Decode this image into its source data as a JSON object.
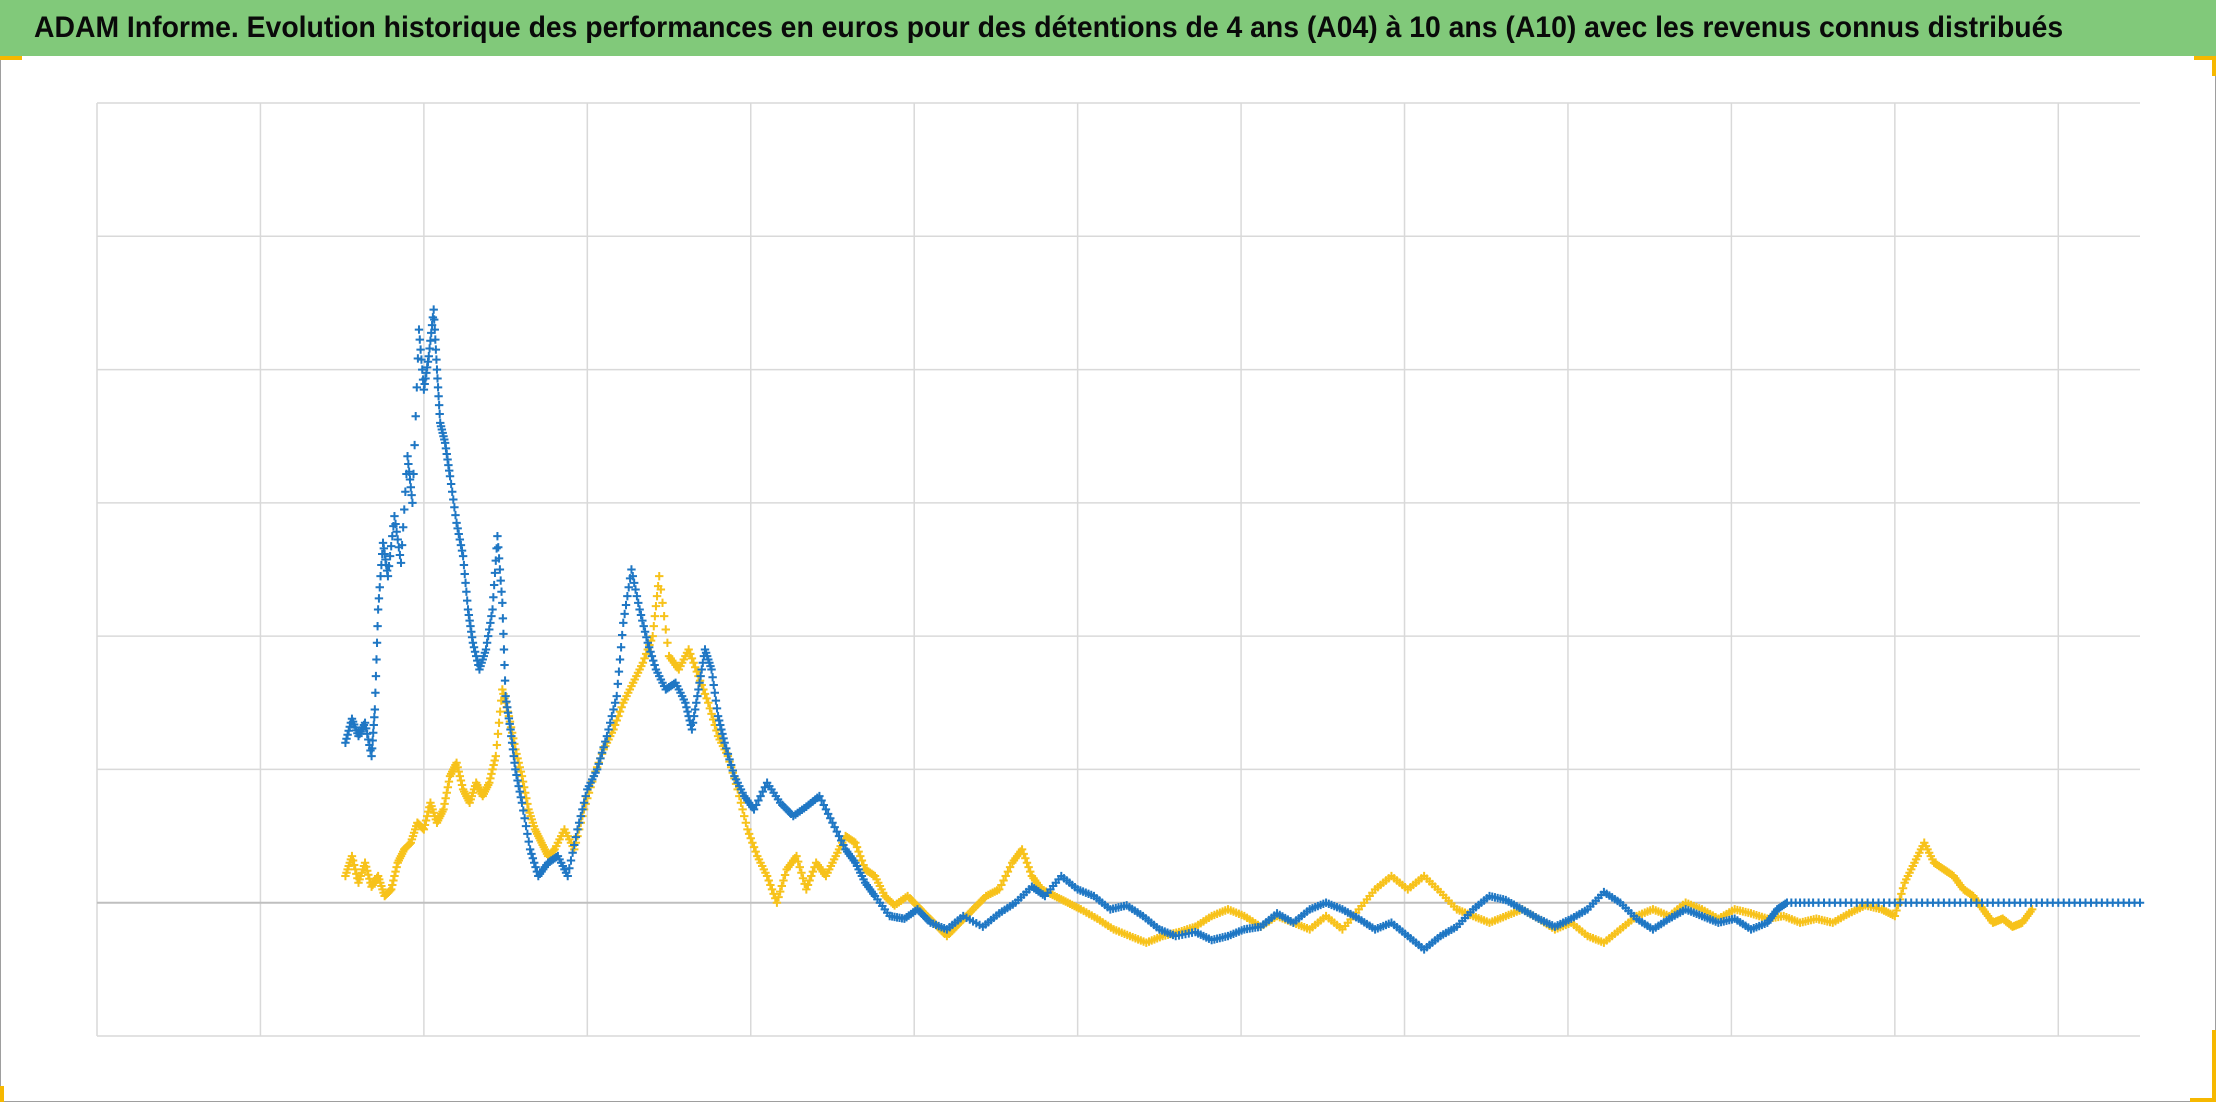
{
  "title": "ADAM Informe. Evolution historique des performances en euros pour des détentions de 4 ans (A04) à 10 ans (A10) avec les revenus connus distribués",
  "colors": {
    "title_bar": "#81c97a",
    "series_blue": "#1f77c4",
    "series_yellow": "#f7c21b",
    "grid": "#d9d9d9",
    "frame_corner": "#f6b800"
  },
  "chart_data": {
    "type": "scatter",
    "marker": "plus",
    "title": "",
    "xlabel": "",
    "ylabel": "",
    "xlim": [
      0,
      12.5
    ],
    "ylim": [
      -1,
      6
    ],
    "x_gridlines": [
      1,
      2,
      3,
      4,
      5,
      6,
      7,
      8,
      9,
      10,
      11,
      12
    ],
    "y_gridlines": [
      -1,
      1,
      2,
      3,
      4,
      5,
      6
    ],
    "baseline_y": 0,
    "grid": true,
    "legend": "none",
    "series": [
      {
        "color": "#1f77c4",
        "points": [
          [
            1.52,
            1.2
          ],
          [
            1.56,
            1.38
          ],
          [
            1.6,
            1.25
          ],
          [
            1.64,
            1.35
          ],
          [
            1.68,
            1.1
          ],
          [
            1.7,
            1.45
          ],
          [
            1.72,
            2.2
          ],
          [
            1.75,
            2.7
          ],
          [
            1.78,
            2.45
          ],
          [
            1.82,
            2.9
          ],
          [
            1.86,
            2.55
          ],
          [
            1.9,
            3.35
          ],
          [
            1.93,
            3.0
          ],
          [
            1.97,
            4.3
          ],
          [
            2.0,
            3.85
          ],
          [
            2.03,
            4.1
          ],
          [
            2.06,
            4.45
          ],
          [
            2.08,
            4.0
          ],
          [
            2.1,
            3.6
          ],
          [
            2.13,
            3.45
          ],
          [
            2.16,
            3.2
          ],
          [
            2.2,
            2.85
          ],
          [
            2.24,
            2.6
          ],
          [
            2.27,
            2.2
          ],
          [
            2.3,
            1.95
          ],
          [
            2.34,
            1.75
          ],
          [
            2.38,
            1.9
          ],
          [
            2.42,
            2.2
          ],
          [
            2.45,
            2.75
          ],
          [
            2.48,
            2.25
          ],
          [
            2.5,
            1.55
          ],
          [
            2.53,
            1.3
          ],
          [
            2.56,
            1.0
          ],
          [
            2.6,
            0.75
          ],
          [
            2.65,
            0.4
          ],
          [
            2.7,
            0.2
          ],
          [
            2.76,
            0.3
          ],
          [
            2.82,
            0.35
          ],
          [
            2.88,
            0.2
          ],
          [
            2.94,
            0.55
          ],
          [
            3.0,
            0.85
          ],
          [
            3.06,
            1.0
          ],
          [
            3.12,
            1.25
          ],
          [
            3.18,
            1.55
          ],
          [
            3.22,
            2.1
          ],
          [
            3.27,
            2.5
          ],
          [
            3.32,
            2.2
          ],
          [
            3.37,
            1.95
          ],
          [
            3.42,
            1.75
          ],
          [
            3.48,
            1.6
          ],
          [
            3.54,
            1.65
          ],
          [
            3.6,
            1.5
          ],
          [
            3.64,
            1.3
          ],
          [
            3.68,
            1.6
          ],
          [
            3.72,
            1.9
          ],
          [
            3.76,
            1.75
          ],
          [
            3.8,
            1.4
          ],
          [
            3.84,
            1.2
          ],
          [
            3.9,
            0.95
          ],
          [
            3.96,
            0.8
          ],
          [
            4.02,
            0.7
          ],
          [
            4.1,
            0.9
          ],
          [
            4.18,
            0.75
          ],
          [
            4.26,
            0.65
          ],
          [
            4.34,
            0.72
          ],
          [
            4.42,
            0.8
          ],
          [
            4.5,
            0.6
          ],
          [
            4.58,
            0.4
          ],
          [
            4.64,
            0.3
          ],
          [
            4.7,
            0.15
          ],
          [
            4.76,
            0.05
          ],
          [
            4.85,
            -0.1
          ],
          [
            4.94,
            -0.12
          ],
          [
            5.02,
            -0.05
          ],
          [
            5.1,
            -0.15
          ],
          [
            5.2,
            -0.2
          ],
          [
            5.3,
            -0.1
          ],
          [
            5.42,
            -0.18
          ],
          [
            5.52,
            -0.08
          ],
          [
            5.62,
            0.0
          ],
          [
            5.72,
            0.12
          ],
          [
            5.8,
            0.05
          ],
          [
            5.9,
            0.2
          ],
          [
            6.0,
            0.1
          ],
          [
            6.1,
            0.05
          ],
          [
            6.2,
            -0.05
          ],
          [
            6.3,
            -0.02
          ],
          [
            6.4,
            -0.1
          ],
          [
            6.5,
            -0.2
          ],
          [
            6.6,
            -0.25
          ],
          [
            6.72,
            -0.22
          ],
          [
            6.82,
            -0.28
          ],
          [
            6.92,
            -0.25
          ],
          [
            7.02,
            -0.2
          ],
          [
            7.12,
            -0.18
          ],
          [
            7.22,
            -0.08
          ],
          [
            7.32,
            -0.15
          ],
          [
            7.42,
            -0.05
          ],
          [
            7.52,
            0.0
          ],
          [
            7.62,
            -0.05
          ],
          [
            7.72,
            -0.12
          ],
          [
            7.82,
            -0.2
          ],
          [
            7.92,
            -0.15
          ],
          [
            8.02,
            -0.25
          ],
          [
            8.12,
            -0.35
          ],
          [
            8.22,
            -0.25
          ],
          [
            8.32,
            -0.18
          ],
          [
            8.42,
            -0.05
          ],
          [
            8.52,
            0.05
          ],
          [
            8.62,
            0.02
          ],
          [
            8.72,
            -0.05
          ],
          [
            8.82,
            -0.12
          ],
          [
            8.92,
            -0.18
          ],
          [
            9.02,
            -0.12
          ],
          [
            9.12,
            -0.05
          ],
          [
            9.22,
            0.08
          ],
          [
            9.32,
            0.0
          ],
          [
            9.42,
            -0.12
          ],
          [
            9.52,
            -0.2
          ],
          [
            9.62,
            -0.12
          ],
          [
            9.72,
            -0.05
          ],
          [
            9.82,
            -0.1
          ],
          [
            9.92,
            -0.15
          ],
          [
            10.02,
            -0.12
          ],
          [
            10.12,
            -0.2
          ],
          [
            10.22,
            -0.15
          ],
          [
            10.28,
            -0.05
          ],
          [
            10.34,
            0.0
          ],
          [
            10.5,
            0.0
          ],
          [
            10.7,
            0.0
          ],
          [
            10.9,
            0.0
          ],
          [
            11.1,
            0.0
          ],
          [
            11.3,
            0.0
          ],
          [
            11.5,
            0.0
          ],
          [
            11.7,
            0.0
          ],
          [
            11.9,
            0.0
          ],
          [
            12.1,
            0.0
          ],
          [
            12.3,
            0.0
          ],
          [
            12.5,
            0.0
          ]
        ]
      },
      {
        "color": "#f7c21b",
        "points": [
          [
            1.52,
            0.2
          ],
          [
            1.56,
            0.35
          ],
          [
            1.6,
            0.15
          ],
          [
            1.64,
            0.3
          ],
          [
            1.68,
            0.12
          ],
          [
            1.72,
            0.2
          ],
          [
            1.76,
            0.05
          ],
          [
            1.8,
            0.1
          ],
          [
            1.84,
            0.3
          ],
          [
            1.88,
            0.4
          ],
          [
            1.92,
            0.45
          ],
          [
            1.96,
            0.6
          ],
          [
            2.0,
            0.55
          ],
          [
            2.04,
            0.75
          ],
          [
            2.08,
            0.6
          ],
          [
            2.12,
            0.7
          ],
          [
            2.16,
            0.95
          ],
          [
            2.2,
            1.05
          ],
          [
            2.24,
            0.85
          ],
          [
            2.28,
            0.75
          ],
          [
            2.32,
            0.9
          ],
          [
            2.36,
            0.8
          ],
          [
            2.4,
            0.9
          ],
          [
            2.44,
            1.1
          ],
          [
            2.48,
            1.6
          ],
          [
            2.52,
            1.4
          ],
          [
            2.56,
            1.15
          ],
          [
            2.6,
            0.95
          ],
          [
            2.64,
            0.7
          ],
          [
            2.68,
            0.55
          ],
          [
            2.72,
            0.45
          ],
          [
            2.76,
            0.35
          ],
          [
            2.8,
            0.4
          ],
          [
            2.86,
            0.55
          ],
          [
            2.92,
            0.4
          ],
          [
            2.98,
            0.7
          ],
          [
            3.04,
            0.95
          ],
          [
            3.1,
            1.15
          ],
          [
            3.16,
            1.3
          ],
          [
            3.22,
            1.5
          ],
          [
            3.28,
            1.65
          ],
          [
            3.34,
            1.8
          ],
          [
            3.4,
            2.0
          ],
          [
            3.44,
            2.45
          ],
          [
            3.5,
            1.85
          ],
          [
            3.56,
            1.75
          ],
          [
            3.62,
            1.9
          ],
          [
            3.68,
            1.7
          ],
          [
            3.74,
            1.5
          ],
          [
            3.8,
            1.25
          ],
          [
            3.86,
            1.1
          ],
          [
            3.92,
            0.85
          ],
          [
            3.98,
            0.55
          ],
          [
            4.04,
            0.35
          ],
          [
            4.1,
            0.2
          ],
          [
            4.16,
            0.0
          ],
          [
            4.22,
            0.25
          ],
          [
            4.28,
            0.35
          ],
          [
            4.34,
            0.1
          ],
          [
            4.4,
            0.3
          ],
          [
            4.46,
            0.2
          ],
          [
            4.52,
            0.35
          ],
          [
            4.58,
            0.5
          ],
          [
            4.64,
            0.45
          ],
          [
            4.7,
            0.25
          ],
          [
            4.76,
            0.2
          ],
          [
            4.82,
            0.05
          ],
          [
            4.88,
            -0.02
          ],
          [
            4.96,
            0.05
          ],
          [
            5.04,
            -0.05
          ],
          [
            5.12,
            -0.15
          ],
          [
            5.2,
            -0.25
          ],
          [
            5.28,
            -0.15
          ],
          [
            5.36,
            -0.05
          ],
          [
            5.44,
            0.05
          ],
          [
            5.52,
            0.1
          ],
          [
            5.6,
            0.3
          ],
          [
            5.66,
            0.4
          ],
          [
            5.72,
            0.2
          ],
          [
            5.78,
            0.1
          ],
          [
            5.86,
            0.05
          ],
          [
            5.94,
            0.0
          ],
          [
            6.02,
            -0.05
          ],
          [
            6.12,
            -0.12
          ],
          [
            6.22,
            -0.2
          ],
          [
            6.32,
            -0.25
          ],
          [
            6.42,
            -0.3
          ],
          [
            6.52,
            -0.25
          ],
          [
            6.62,
            -0.22
          ],
          [
            6.72,
            -0.18
          ],
          [
            6.82,
            -0.1
          ],
          [
            6.92,
            -0.05
          ],
          [
            7.02,
            -0.1
          ],
          [
            7.12,
            -0.18
          ],
          [
            7.22,
            -0.1
          ],
          [
            7.32,
            -0.15
          ],
          [
            7.42,
            -0.2
          ],
          [
            7.52,
            -0.1
          ],
          [
            7.62,
            -0.2
          ],
          [
            7.72,
            -0.05
          ],
          [
            7.82,
            0.1
          ],
          [
            7.92,
            0.2
          ],
          [
            8.02,
            0.1
          ],
          [
            8.12,
            0.2
          ],
          [
            8.22,
            0.08
          ],
          [
            8.32,
            -0.05
          ],
          [
            8.42,
            -0.1
          ],
          [
            8.52,
            -0.15
          ],
          [
            8.62,
            -0.1
          ],
          [
            8.72,
            -0.05
          ],
          [
            8.82,
            -0.12
          ],
          [
            8.92,
            -0.2
          ],
          [
            9.02,
            -0.15
          ],
          [
            9.12,
            -0.25
          ],
          [
            9.22,
            -0.3
          ],
          [
            9.32,
            -0.2
          ],
          [
            9.42,
            -0.1
          ],
          [
            9.52,
            -0.05
          ],
          [
            9.62,
            -0.1
          ],
          [
            9.72,
            0.0
          ],
          [
            9.82,
            -0.05
          ],
          [
            9.92,
            -0.12
          ],
          [
            10.02,
            -0.05
          ],
          [
            10.12,
            -0.08
          ],
          [
            10.22,
            -0.12
          ],
          [
            10.32,
            -0.1
          ],
          [
            10.42,
            -0.15
          ],
          [
            10.52,
            -0.12
          ],
          [
            10.62,
            -0.15
          ],
          [
            10.72,
            -0.08
          ],
          [
            10.82,
            -0.02
          ],
          [
            10.92,
            -0.05
          ],
          [
            11.0,
            -0.1
          ],
          [
            11.06,
            0.15
          ],
          [
            11.12,
            0.3
          ],
          [
            11.18,
            0.45
          ],
          [
            11.24,
            0.3
          ],
          [
            11.3,
            0.25
          ],
          [
            11.36,
            0.2
          ],
          [
            11.42,
            0.1
          ],
          [
            11.48,
            0.05
          ],
          [
            11.54,
            -0.05
          ],
          [
            11.6,
            -0.15
          ],
          [
            11.66,
            -0.12
          ],
          [
            11.72,
            -0.18
          ],
          [
            11.78,
            -0.15
          ],
          [
            11.84,
            -0.05
          ]
        ]
      }
    ]
  }
}
